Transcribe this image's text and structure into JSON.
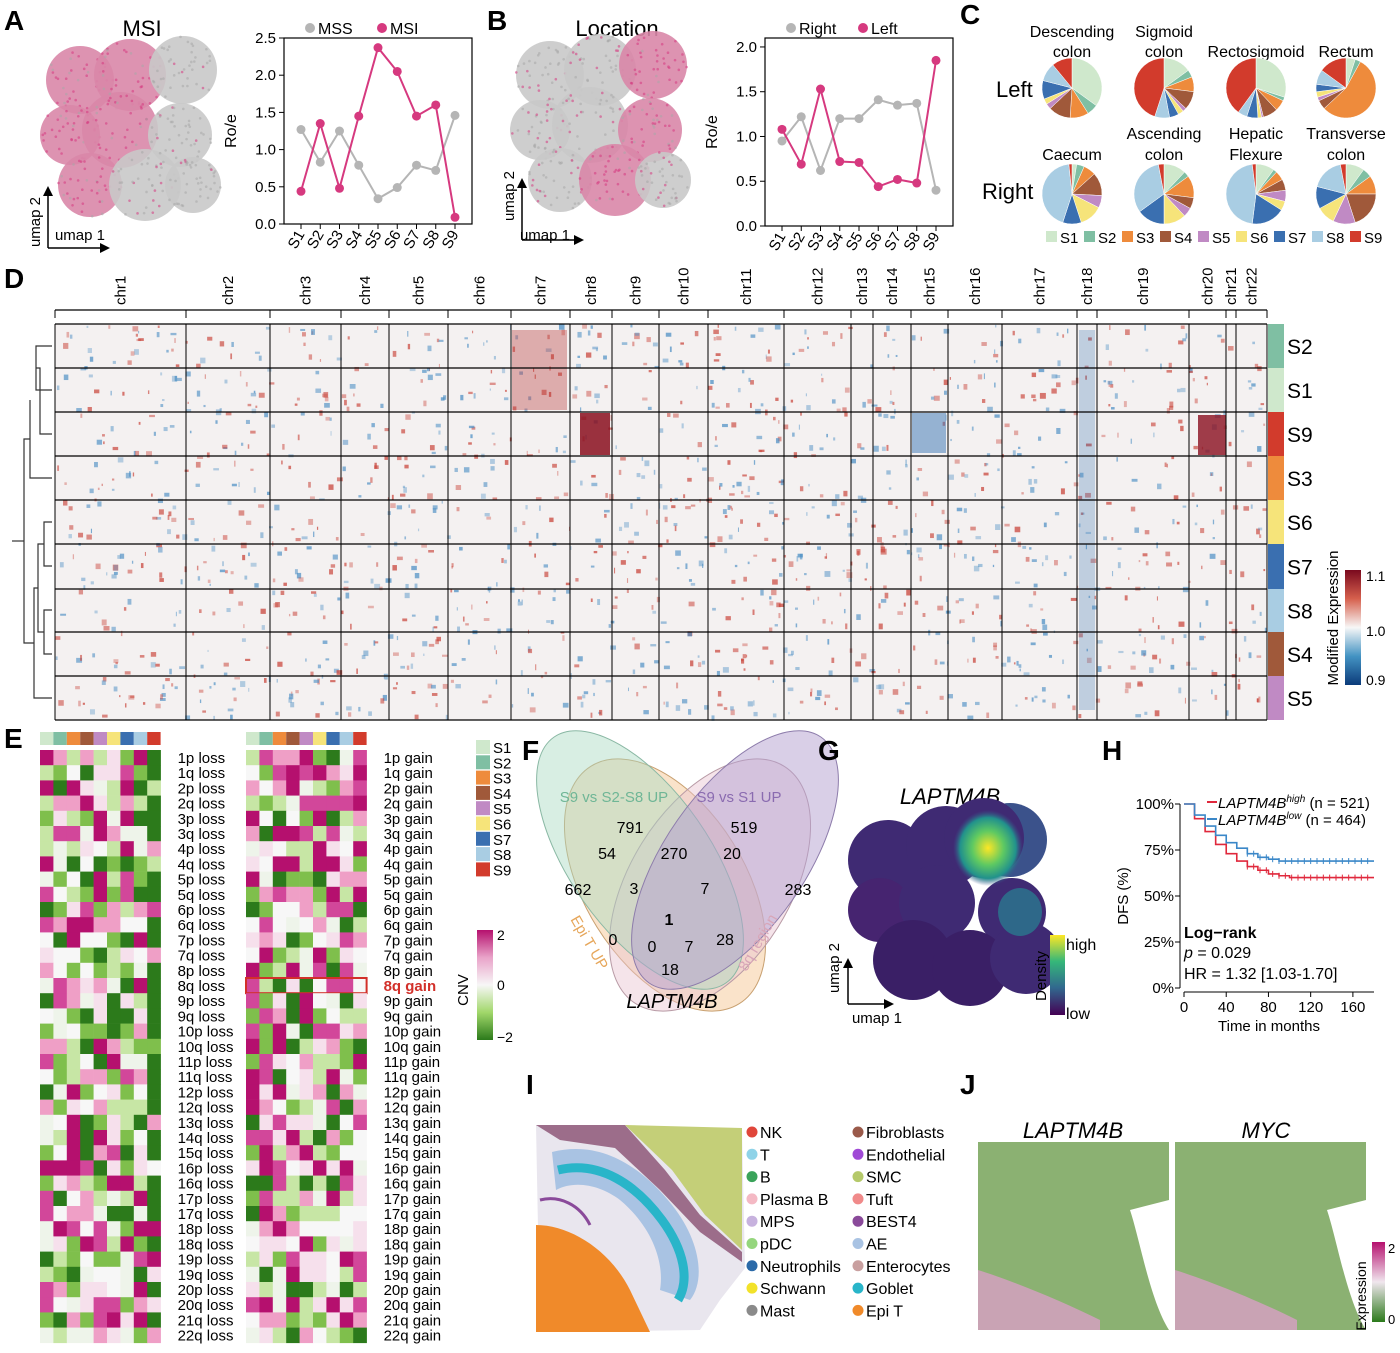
{
  "colors": {
    "S1": "#cfe8cc",
    "S2": "#7fbfa3",
    "S3": "#ee8b3c",
    "S4": "#a0593a",
    "S5": "#c08ac4",
    "S6": "#f6e47a",
    "S7": "#3a6fb0",
    "S8": "#a9cde3",
    "S9": "#d23b2c",
    "msi": "#d6397f",
    "mss": "#b5b5b5",
    "left": "#d6397f",
    "right": "#b5b5b5"
  },
  "clusters": [
    "S1",
    "S2",
    "S3",
    "S4",
    "S5",
    "S6",
    "S7",
    "S8",
    "S9"
  ],
  "panelA": {
    "letter": "A",
    "title": "MSI",
    "umap_y": "umap 2",
    "umap_x": "umap 1",
    "chart_data": {
      "type": "line",
      "categories": [
        "S1",
        "S2",
        "S3",
        "S4",
        "S5",
        "S6",
        "S7",
        "S8",
        "S9"
      ],
      "series": [
        {
          "name": "MSS",
          "values": [
            1.27,
            0.83,
            1.25,
            0.79,
            0.34,
            0.49,
            0.79,
            0.72,
            1.46
          ]
        },
        {
          "name": "MSI",
          "values": [
            0.44,
            1.35,
            0.48,
            1.45,
            2.37,
            2.05,
            1.45,
            1.6,
            0.09
          ]
        }
      ],
      "ylabel": "Ro/e",
      "ylim": [
        0,
        2.5
      ],
      "yticks": [
        "0.0",
        "0.5",
        "1.0",
        "1.5",
        "2.0",
        "2.5"
      ],
      "legend": "top"
    }
  },
  "panelB": {
    "letter": "B",
    "title": "Location",
    "umap_y": "umap 2",
    "umap_x": "umap 1",
    "chart_data": {
      "type": "line",
      "categories": [
        "S1",
        "S2",
        "S3",
        "S4",
        "S5",
        "S6",
        "S7",
        "S8",
        "S9"
      ],
      "series": [
        {
          "name": "Right",
          "values": [
            0.95,
            1.22,
            0.62,
            1.2,
            1.2,
            1.41,
            1.35,
            1.37,
            0.4
          ]
        },
        {
          "name": "Left",
          "values": [
            1.08,
            0.69,
            1.53,
            0.72,
            0.71,
            0.44,
            0.52,
            0.48,
            1.85
          ]
        }
      ],
      "ylabel": "Ro/e",
      "ylim": [
        0,
        2.1
      ],
      "yticks": [
        "0.0",
        "0.5",
        "1.0",
        "1.5",
        "2.0"
      ],
      "legend": "top"
    }
  },
  "panelC": {
    "letter": "C",
    "row_left": "Left",
    "row_right": "Right",
    "chart_data": {
      "type": "pie",
      "pies": [
        {
          "label": "Descending colon",
          "row": "Left",
          "values": [
            0.35,
            0.06,
            0.1,
            0.12,
            0.03,
            0.03,
            0.1,
            0.1,
            0.11
          ]
        },
        {
          "label": "Sigmoid colon",
          "row": "Left",
          "values": [
            0.15,
            0.04,
            0.08,
            0.1,
            0.02,
            0.03,
            0.05,
            0.08,
            0.45
          ]
        },
        {
          "label": "Rectosigmoid",
          "row": "Left",
          "values": [
            0.3,
            0.02,
            0.06,
            0.08,
            0.01,
            0.02,
            0.06,
            0.05,
            0.4
          ]
        },
        {
          "label": "Rectum",
          "row": "Left",
          "values": [
            0.05,
            0.03,
            0.55,
            0.05,
            0.02,
            0.03,
            0.04,
            0.08,
            0.15
          ]
        },
        {
          "label": "Caecum",
          "row": "Right",
          "values": [
            0.03,
            0.05,
            0.08,
            0.15,
            0.08,
            0.15,
            0.12,
            0.52,
            0.02
          ]
        },
        {
          "label": "Ascending colon",
          "row": "Right",
          "values": [
            0.12,
            0.03,
            0.12,
            0.06,
            0.05,
            0.12,
            0.15,
            0.32,
            0.03
          ]
        },
        {
          "label": "Hepatic Flexure",
          "row": "Right",
          "values": [
            0.1,
            0.02,
            0.05,
            0.06,
            0.06,
            0.05,
            0.18,
            0.46,
            0.02
          ]
        },
        {
          "label": "Transverse colon",
          "row": "Right",
          "values": [
            0.1,
            0.05,
            0.1,
            0.2,
            0.12,
            0.1,
            0.12,
            0.18,
            0.03
          ]
        }
      ]
    }
  },
  "panelD": {
    "letter": "D",
    "chromosomes": [
      "chr1",
      "chr2",
      "chr3",
      "chr4",
      "chr5",
      "chr6",
      "chr7",
      "chr8",
      "chr9",
      "chr10",
      "chr11",
      "chr12",
      "chr13",
      "chr14",
      "chr15",
      "chr16",
      "chr17",
      "chr18",
      "chr19",
      "chr20",
      "chr21",
      "chr22"
    ],
    "row_order": [
      "S2",
      "S1",
      "S9",
      "S3",
      "S6",
      "S7",
      "S8",
      "S4",
      "S5"
    ],
    "legend_title": "Modified Expression",
    "legend_ticks": [
      "1.1",
      "1.0",
      "0.9"
    ],
    "chart_data": {
      "type": "heatmap",
      "x": "chromosomes",
      "y": "row_order",
      "value_range": [
        0.9,
        1.1
      ]
    }
  },
  "panelE": {
    "letter": "E",
    "loss_labels": [
      "1p loss",
      "1q loss",
      "2p loss",
      "2q loss",
      "3p loss",
      "3q loss",
      "4p loss",
      "4q loss",
      "5p loss",
      "5q loss",
      "6p loss",
      "6q loss",
      "7p loss",
      "7q loss",
      "8p loss",
      "8q loss",
      "9p loss",
      "9q loss",
      "10p loss",
      "10q loss",
      "11p loss",
      "11q loss",
      "12p loss",
      "12q loss",
      "13q loss",
      "14q loss",
      "15q loss",
      "16p loss",
      "16q loss",
      "17p loss",
      "17q loss",
      "18p loss",
      "18q loss",
      "19p loss",
      "19q loss",
      "20p loss",
      "20q loss",
      "21q loss",
      "22q loss"
    ],
    "gain_labels": [
      "1p gain",
      "1q gain",
      "2p gain",
      "2q gain",
      "3p gain",
      "3q gain",
      "4p gain",
      "4q gain",
      "5p gain",
      "5q gain",
      "6p gain",
      "6q gain",
      "7p gain",
      "7q gain",
      "8p gain",
      "8q gain",
      "9p gain",
      "9q gain",
      "10p gain",
      "10q gain",
      "11p gain",
      "11q gain",
      "12p gain",
      "12q gain",
      "13q gain",
      "14q gain",
      "15q gain",
      "16p gain",
      "16q gain",
      "17p gain",
      "17q gain",
      "18p gain",
      "18q gain",
      "19p gain",
      "19q gain",
      "20p gain",
      "20q gain",
      "21q gain",
      "22q gain"
    ],
    "highlight": "8q gain",
    "legend_title": "CNV",
    "legend_ticks": [
      "2",
      "0",
      "−2"
    ],
    "chart_data": {
      "type": "heatmap",
      "x": [
        "S1",
        "S2",
        "S3",
        "S4",
        "S5",
        "S6",
        "S7",
        "S8",
        "S9"
      ],
      "value_range": [
        -2,
        2
      ]
    }
  },
  "panelF": {
    "letter": "F",
    "sets": [
      "S9 vs S2-S8 UP",
      "S9 vs S1 UP",
      "Epi T UP",
      "8q region"
    ],
    "counts": [
      "791",
      "519",
      "662",
      "283",
      "54",
      "270",
      "20",
      "3",
      "7",
      "1",
      "0",
      "0",
      "7",
      "28",
      "18"
    ],
    "gene": "LAPTM4B"
  },
  "panelG": {
    "letter": "G",
    "gene": "LAPTM4B",
    "legend_title": "Density",
    "high": "high",
    "low": "low",
    "umap_y": "umap 2",
    "umap_x": "umap 1"
  },
  "panelH": {
    "letter": "H",
    "legend": [
      {
        "gene": "LAPTM4B",
        "sup": "high",
        "n": "(n = 521)"
      },
      {
        "gene": "LAPTM4B",
        "sup": "low",
        "n": "(n = 464)"
      }
    ],
    "ylabel": "DFS (%)",
    "xlabel": "Time in months",
    "yticks": [
      "100%",
      "75%",
      "50%",
      "25%",
      "0%"
    ],
    "xticks": [
      "0",
      "40",
      "80",
      "120",
      "160"
    ],
    "stat_title": "Log−rank",
    "p_label": "p",
    "p_value": "= 0.029",
    "hr": "HR = 1.32 [1.03-1.70]",
    "chart_data": {
      "type": "line",
      "series": [
        {
          "name": "LAPTM4B high",
          "x": [
            0,
            10,
            20,
            30,
            40,
            50,
            60,
            70,
            80,
            90,
            100,
            110,
            120,
            140,
            160,
            180
          ],
          "values": [
            100,
            92,
            85,
            78,
            73,
            69,
            66,
            64,
            62,
            61,
            60,
            60,
            60,
            60,
            60,
            60
          ]
        },
        {
          "name": "LAPTM4B low",
          "x": [
            0,
            10,
            20,
            30,
            40,
            50,
            60,
            70,
            80,
            90,
            100,
            110,
            120,
            140,
            160,
            180
          ],
          "values": [
            100,
            94,
            88,
            83,
            79,
            76,
            73,
            71,
            70,
            69,
            69,
            69,
            69,
            69,
            69,
            69
          ]
        }
      ],
      "xlim": [
        0,
        180
      ],
      "ylim": [
        0,
        100
      ]
    }
  },
  "panelI": {
    "letter": "I",
    "legend_col1": [
      {
        "label": "NK",
        "color": "#e0463a"
      },
      {
        "label": "T",
        "color": "#8fd3e8"
      },
      {
        "label": "B",
        "color": "#3aa35a"
      },
      {
        "label": "Plasma B",
        "color": "#f4b9c4"
      },
      {
        "label": "MPS",
        "color": "#c7b2de"
      },
      {
        "label": "pDC",
        "color": "#95d67d"
      },
      {
        "label": "Neutrophils",
        "color": "#2b6aa8"
      },
      {
        "label": "Schwann",
        "color": "#f2e22a"
      },
      {
        "label": "Mast",
        "color": "#8a8a8a"
      }
    ],
    "legend_col2": [
      {
        "label": "Fibroblasts",
        "color": "#9a5a4a"
      },
      {
        "label": "Endothelial",
        "color": "#a04ad6"
      },
      {
        "label": "SMC",
        "color": "#b5c96a"
      },
      {
        "label": "Tuft",
        "color": "#f08a8a"
      },
      {
        "label": "BEST4",
        "color": "#8a4a9a"
      },
      {
        "label": "AE",
        "color": "#a9c3e3"
      },
      {
        "label": "Enterocytes",
        "color": "#c9a0a0"
      },
      {
        "label": "Goblet",
        "color": "#29b5c9"
      },
      {
        "label": "Epi T",
        "color": "#f08a2a"
      }
    ]
  },
  "panelJ": {
    "letter": "J",
    "genes": [
      "LAPTM4B",
      "MYC"
    ],
    "legend_title": "Expression",
    "legend_ticks": [
      "2",
      "0"
    ]
  }
}
